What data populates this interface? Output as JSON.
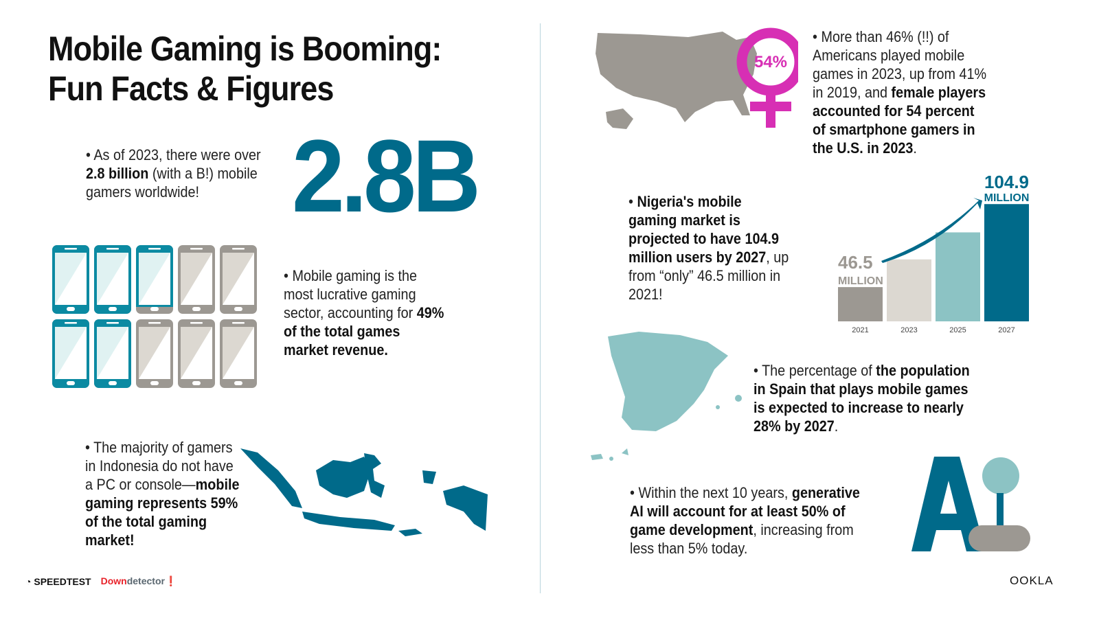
{
  "title": {
    "line1": "Mobile Gaming is Booming:",
    "line2": "Fun Facts & Figures"
  },
  "colors": {
    "teal_dark": "#006a8a",
    "teal_phone": "#0b8aa2",
    "teal_light": "#8cc3c4",
    "gray": "#9c9892",
    "beige": "#dcd8d1",
    "magenta": "#d72fb4"
  },
  "fact_gamers": {
    "p1": "As of 2023, there were over ",
    "b1": "2.8 billion",
    "p2": " (with a B!) mobile gamers worldwide!",
    "big_number": "2.8B"
  },
  "fact_revenue": {
    "p1": "Mobile gaming is the most lucrative gaming sector, accounting for ",
    "b1": "49% of the total games market revenue.",
    "phones_fill_percent": 49
  },
  "fact_indonesia": {
    "p1": "The majority of gamers in Indonesia do not have a PC or console—",
    "b1": "mobile gaming represents 59% of the total gaming market!"
  },
  "fact_us": {
    "p1": "More than 46% (!!) of Americans played mobile games in 2023, up from 41% in 2019, and ",
    "b1": "female players accounted for 54 percent of smartphone gamers in the U.S. in 2023",
    "p2": ".",
    "badge": "54%"
  },
  "fact_nigeria": {
    "b1": "Nigeria's mobile gaming market is projected to have 104.9 million users by 2027",
    "p1": ", up from “only” 46.5 million in 2021!"
  },
  "chart_data": {
    "type": "bar",
    "categories": [
      "2021",
      "2023",
      "2025",
      "2027"
    ],
    "values": [
      46.5,
      66,
      85,
      104.9
    ],
    "data_labels": [
      {
        "value": "46.5",
        "unit": "MILLION"
      },
      {
        "value": "104.9",
        "unit": "MILLION"
      }
    ],
    "colors": [
      "#9c9892",
      "#dcd8d1",
      "#8cc3c4",
      "#006a8a"
    ],
    "grid": false,
    "title": "",
    "xlabel": "",
    "ylabel": ""
  },
  "fact_spain": {
    "p1": "The percentage of ",
    "b1": "the population in Spain that plays mobile games is expected to increase to nearly 28% by 2027",
    "p2": "."
  },
  "fact_ai": {
    "p1": "Within the next 10 years, ",
    "b1": "generative AI will account for at least 50% of game development",
    "p2": ", increasing from less than 5% today.",
    "logo_letter": "A"
  },
  "footer": {
    "speedtest": "SPEEDTEST",
    "downdetector_a": "Down",
    "downdetector_b": "detector",
    "ookla": "OOKLA"
  }
}
